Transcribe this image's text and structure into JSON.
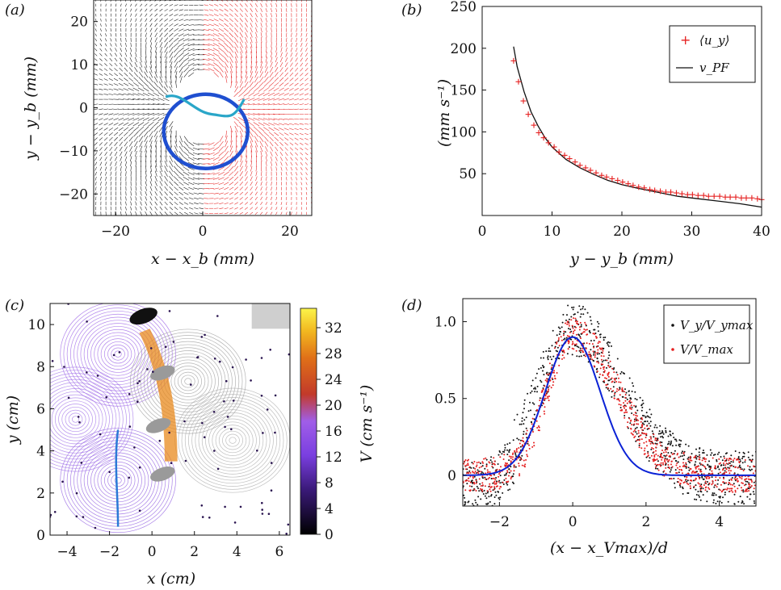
{
  "panels": {
    "a": {
      "label": "(a)",
      "xlabel": "x − x_b (mm)",
      "ylabel": "y − y_b (mm)"
    },
    "b": {
      "label": "(b)",
      "xlabel": "y − y_b (mm)",
      "ylabel": "(mm s⁻¹)"
    },
    "c": {
      "label": "(c)",
      "xlabel": "x (cm)",
      "ylabel": "y (cm)",
      "colorbar_label": "V (cm s⁻¹)"
    },
    "d": {
      "label": "(d)",
      "xlabel": "(x − x_Vmax)/d",
      "ylabel": ""
    }
  },
  "colors": {
    "red": "#e51f1f",
    "black": "#111111",
    "blue_path": "#1f4fd0",
    "cyan_path": "#2aa6c8",
    "gauss": "#0b22d6",
    "purple": "#8a4fe8"
  },
  "chart_data": [
    {
      "panel": "a",
      "type": "scatter",
      "title": "",
      "xlabel": "x − x_b (mm)",
      "ylabel": "y − y_b (mm)",
      "xlim": [
        -25,
        25
      ],
      "ylim": [
        -25,
        25
      ],
      "xticks": [
        -20,
        0,
        20
      ],
      "yticks": [
        -20,
        -10,
        0,
        10,
        20
      ],
      "series": [
        {
          "name": "",
          "description_color": "black",
          "values": []
        }
      ]
    },
    {
      "panel": "b",
      "type": "line",
      "xlabel": "y − y_b (mm)",
      "ylabel": "(mm s⁻¹)",
      "xlim": [
        0,
        40
      ],
      "ylim": [
        0,
        250
      ],
      "xticks": [
        0,
        10,
        20,
        30,
        40
      ],
      "yticks": [
        50,
        100,
        150,
        200,
        250
      ],
      "legend_position": "top-right",
      "series": [
        {
          "name": "⟨u_y⟩",
          "marker": "+",
          "x": [
            4.5,
            5.2,
            5.9,
            6.6,
            7.4,
            8.1,
            8.8,
            9.5,
            10.3,
            11,
            11.8,
            12.5,
            13.3,
            14,
            14.8,
            15.5,
            16.3,
            17.1,
            17.8,
            18.6,
            19.4,
            20.1,
            20.9,
            21.6,
            22.4,
            23.2,
            24,
            24.7,
            25.5,
            26.3,
            27,
            27.8,
            28.6,
            29.4,
            30.1,
            30.9,
            31.7,
            32.4,
            33.2,
            34,
            34.8,
            35.5,
            36.3,
            37.1,
            37.8,
            38.6,
            39.4,
            40
          ],
          "y": [
            185,
            160,
            137,
            121,
            108,
            99,
            93,
            87,
            82,
            76,
            72,
            68,
            64,
            60,
            57,
            54,
            51,
            48,
            46,
            44,
            42,
            40,
            38,
            36,
            34,
            33,
            31,
            30,
            29,
            28,
            28,
            27,
            26,
            25,
            25,
            24,
            24,
            23,
            23,
            23,
            22,
            22,
            22,
            21,
            21,
            21,
            20,
            19
          ]
        },
        {
          "name": "v_PF",
          "x": [
            4.5,
            5,
            6,
            7,
            8,
            9,
            10,
            12,
            14,
            16,
            18,
            20,
            22,
            25,
            28,
            31,
            34,
            37,
            40
          ],
          "y": [
            202,
            178,
            148,
            124,
            107,
            93,
            82,
            67,
            57,
            49,
            42,
            37,
            33,
            28,
            23,
            20,
            17,
            14,
            10
          ]
        }
      ]
    },
    {
      "panel": "c",
      "type": "heatmap",
      "xlabel": "x (cm)",
      "ylabel": "y (cm)",
      "xlim": [
        -4.8,
        6.5
      ],
      "ylim": [
        0,
        11
      ],
      "xticks": [
        -4,
        -2,
        0,
        2,
        4,
        6
      ],
      "yticks": [
        0,
        2,
        4,
        6,
        8,
        10
      ],
      "colorbar": {
        "label": "V (cm s⁻¹)",
        "ticks": [
          0,
          4,
          8,
          12,
          16,
          20,
          24,
          28,
          32
        ],
        "range": [
          0,
          35
        ]
      }
    },
    {
      "panel": "d",
      "type": "scatter",
      "xlabel": "(x − x_Vmax)/d",
      "xlim": [
        -3,
        5
      ],
      "ylim": [
        -0.2,
        1.15
      ],
      "xticks": [
        -2,
        0,
        2,
        4
      ],
      "yticks": [
        0,
        0.5,
        1.0
      ],
      "ytick_labels": [
        "0",
        "0.5",
        "1.0"
      ],
      "legend_position": "top-right",
      "series": [
        {
          "name": "V_y/V_ymax",
          "color": "black"
        },
        {
          "name": "V/V_max",
          "color": "red"
        },
        {
          "name": "",
          "type": "line",
          "color": "blue",
          "peak": 0.9,
          "center": 0,
          "sigma": 0.75
        }
      ]
    }
  ],
  "legend_b": {
    "item1": "⟨u_y⟩",
    "item2": "v_PF"
  },
  "legend_d": {
    "item1": "V_y/V_ymax",
    "item2": "V/V_max"
  }
}
